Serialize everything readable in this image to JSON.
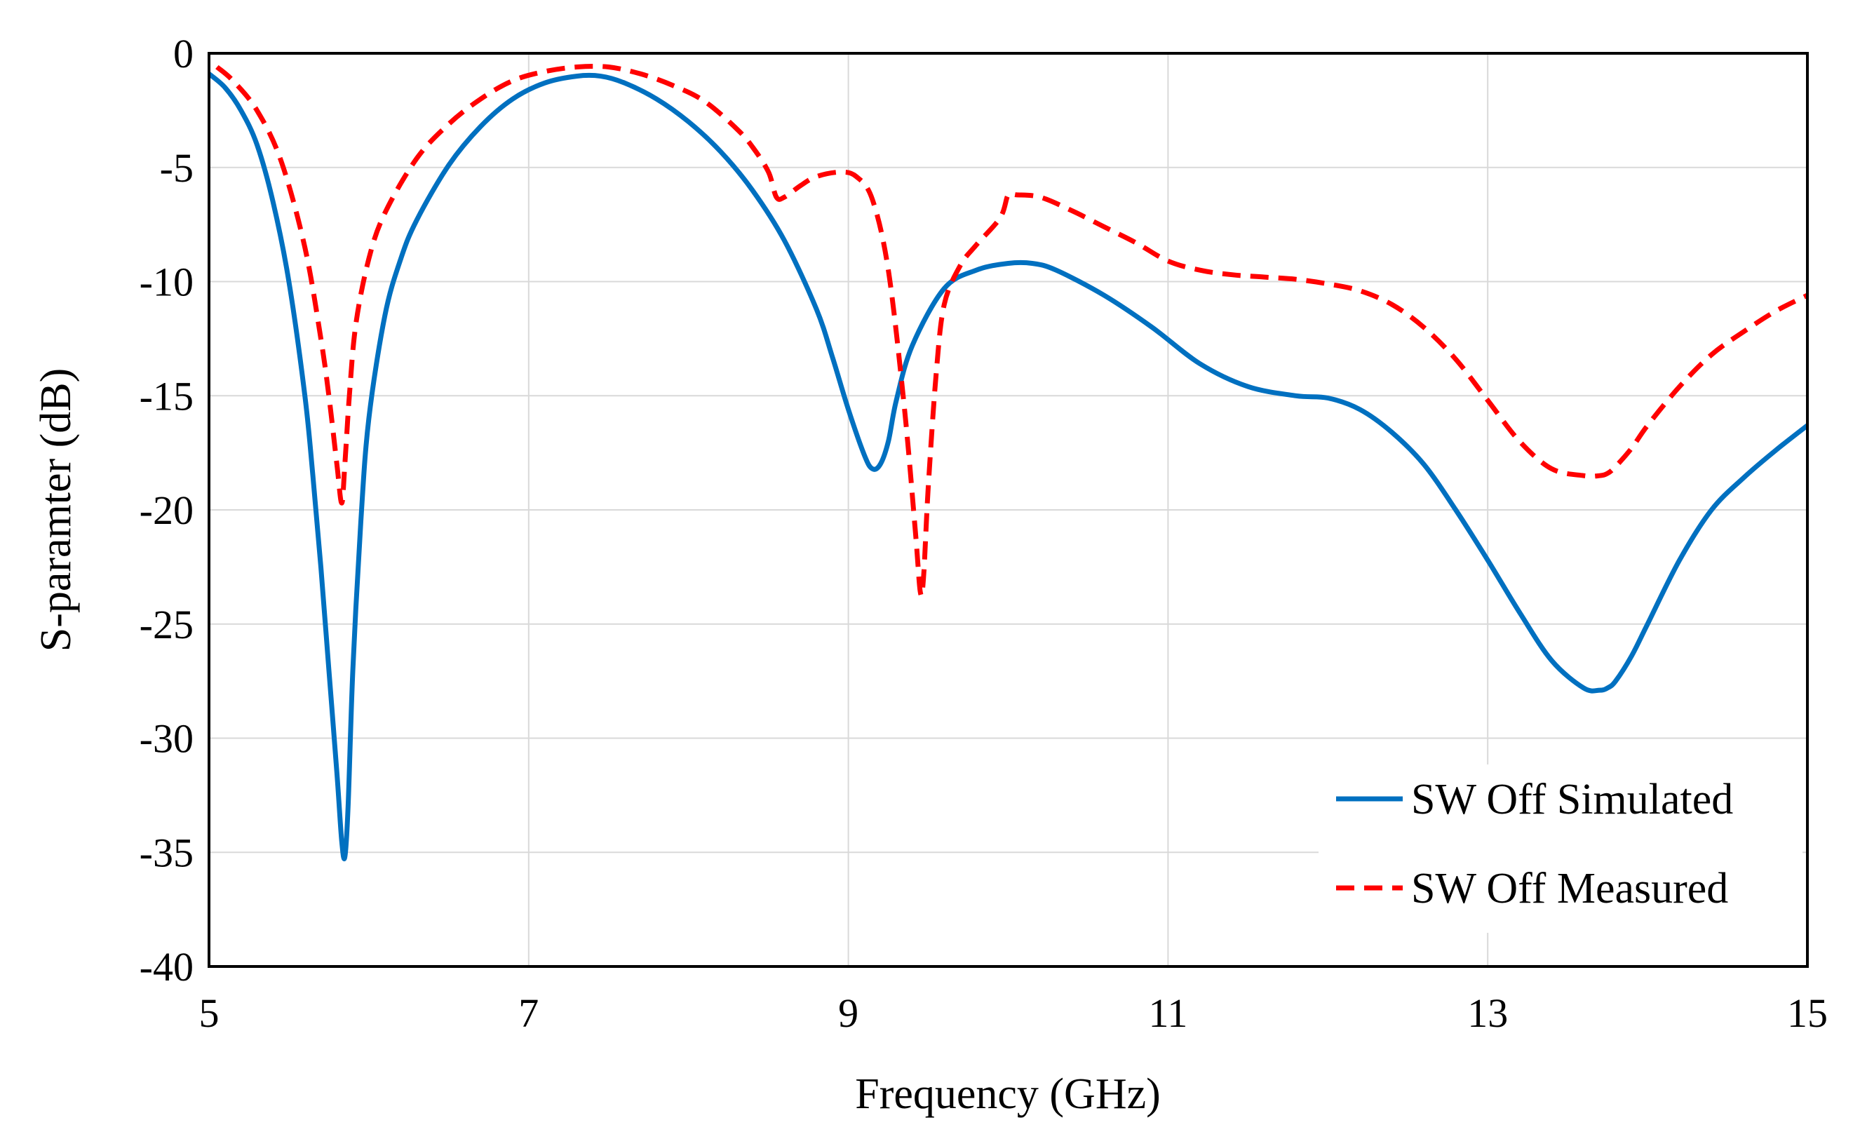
{
  "chart_data": {
    "type": "line",
    "title": "",
    "xlabel": "Frequency (GHz)",
    "ylabel": "S-paramter (dB)",
    "xlim": [
      5,
      15
    ],
    "ylim": [
      -40,
      0
    ],
    "xticks": [
      5,
      7,
      9,
      11,
      13,
      15
    ],
    "yticks": [
      0,
      -5,
      -10,
      -15,
      -20,
      -25,
      -30,
      -35,
      -40
    ],
    "xtick_labels": [
      "5",
      "7",
      "9",
      "11",
      "13",
      "15"
    ],
    "ytick_labels": [
      "0",
      "-5",
      "-10",
      "-15",
      "-20",
      "-25",
      "-30",
      "-35",
      "-40"
    ],
    "grid": true,
    "legend_position": "bottom-right",
    "series": [
      {
        "name": "SW Off Simulated",
        "color": "#0070C0",
        "dash": "solid",
        "x": [
          5.0,
          5.1,
          5.2,
          5.3,
          5.4,
          5.5,
          5.6,
          5.65,
          5.7,
          5.75,
          5.8,
          5.83,
          5.85,
          5.87,
          5.9,
          5.95,
          6.0,
          6.1,
          6.2,
          6.3,
          6.5,
          6.7,
          6.9,
          7.1,
          7.3,
          7.45,
          7.6,
          7.8,
          8.0,
          8.2,
          8.4,
          8.6,
          8.8,
          8.9,
          9.0,
          9.1,
          9.15,
          9.2,
          9.25,
          9.3,
          9.4,
          9.6,
          9.8,
          10.0,
          10.15,
          10.3,
          10.6,
          10.9,
          11.2,
          11.5,
          11.8,
          12.0,
          12.2,
          12.4,
          12.6,
          12.8,
          13.0,
          13.2,
          13.4,
          13.6,
          13.7,
          13.75,
          13.8,
          13.9,
          14.0,
          14.2,
          14.4,
          14.6,
          14.8,
          15.0
        ],
        "y": [
          -0.9,
          -1.5,
          -2.5,
          -4.0,
          -6.5,
          -10.0,
          -15.0,
          -18.5,
          -22.5,
          -27.0,
          -31.5,
          -34.5,
          -35.2,
          -33.0,
          -27.0,
          -20.5,
          -16.0,
          -11.5,
          -9.0,
          -7.3,
          -4.9,
          -3.2,
          -2.0,
          -1.3,
          -1.0,
          -1.0,
          -1.3,
          -2.0,
          -3.0,
          -4.3,
          -6.0,
          -8.2,
          -11.2,
          -13.3,
          -15.6,
          -17.6,
          -18.2,
          -18.0,
          -17.0,
          -15.2,
          -12.8,
          -10.3,
          -9.5,
          -9.2,
          -9.2,
          -9.5,
          -10.6,
          -12.0,
          -13.6,
          -14.6,
          -15.0,
          -15.1,
          -15.6,
          -16.6,
          -18.0,
          -20.0,
          -22.2,
          -24.5,
          -26.6,
          -27.8,
          -27.9,
          -27.8,
          -27.5,
          -26.4,
          -25.0,
          -22.2,
          -20.0,
          -18.6,
          -17.4,
          -16.3
        ]
      },
      {
        "name": "SW Off Measured",
        "color": "#FF0000",
        "dash": "dashed",
        "x": [
          5.05,
          5.15,
          5.3,
          5.45,
          5.6,
          5.7,
          5.75,
          5.8,
          5.83,
          5.85,
          5.88,
          5.92,
          6.0,
          6.1,
          6.3,
          6.5,
          6.7,
          6.9,
          7.1,
          7.3,
          7.5,
          7.7,
          7.9,
          8.1,
          8.3,
          8.4,
          8.5,
          8.55,
          8.6,
          8.7,
          8.8,
          8.95,
          9.05,
          9.15,
          9.25,
          9.35,
          9.42,
          9.45,
          9.47,
          9.5,
          9.55,
          9.6,
          9.7,
          9.8,
          9.95,
          10.0,
          10.05,
          10.2,
          10.4,
          10.6,
          10.8,
          11.0,
          11.2,
          11.4,
          11.6,
          11.8,
          12.0,
          12.2,
          12.4,
          12.6,
          12.8,
          13.0,
          13.2,
          13.4,
          13.6,
          13.7,
          13.75,
          13.8,
          13.9,
          14.0,
          14.2,
          14.4,
          14.6,
          14.8,
          15.0
        ],
        "y": [
          -0.6,
          -1.2,
          -2.5,
          -4.7,
          -8.5,
          -12.5,
          -15.0,
          -18.0,
          -19.7,
          -18.0,
          -14.8,
          -11.8,
          -9.0,
          -7.0,
          -4.6,
          -3.1,
          -2.0,
          -1.2,
          -0.8,
          -0.6,
          -0.6,
          -0.9,
          -1.4,
          -2.1,
          -3.3,
          -4.1,
          -5.2,
          -6.3,
          -6.3,
          -5.8,
          -5.4,
          -5.2,
          -5.4,
          -6.4,
          -9.5,
          -15.5,
          -21.0,
          -23.6,
          -23.0,
          -19.0,
          -14.0,
          -11.0,
          -9.3,
          -8.4,
          -7.2,
          -6.2,
          -6.2,
          -6.3,
          -6.9,
          -7.6,
          -8.3,
          -9.1,
          -9.5,
          -9.7,
          -9.8,
          -9.9,
          -10.1,
          -10.4,
          -11.0,
          -12.0,
          -13.4,
          -15.2,
          -17.0,
          -18.2,
          -18.5,
          -18.5,
          -18.4,
          -18.1,
          -17.3,
          -16.3,
          -14.6,
          -13.2,
          -12.2,
          -11.3,
          -10.6
        ]
      }
    ]
  }
}
